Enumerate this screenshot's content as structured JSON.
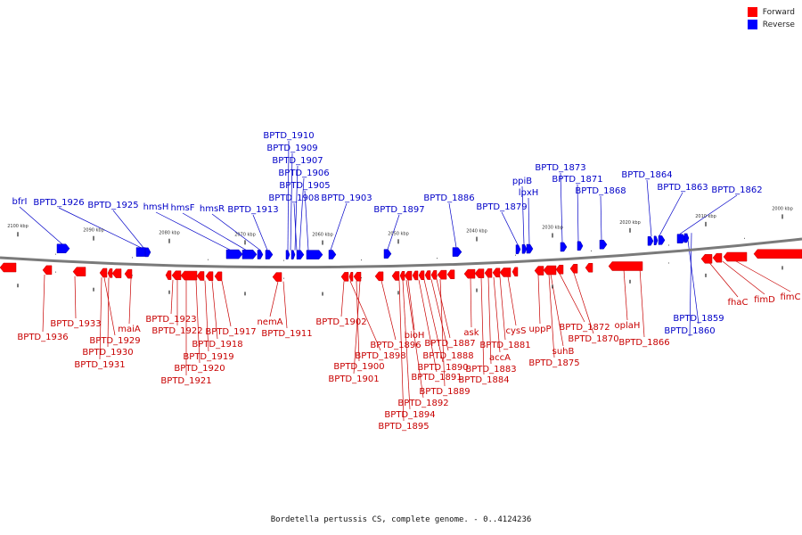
{
  "legend": {
    "forward": {
      "label": "Forward",
      "color": "#ff0000"
    },
    "reverse": {
      "label": "Reverse",
      "color": "#0000ff"
    }
  },
  "caption": "Bordetella pertussis CS, complete genome. - 0..4124236",
  "ticks": [
    "2100 kbp",
    "2090 kbp",
    "2080 kbp",
    "2070 kbp",
    "2060 kbp",
    "2050 kbp",
    "2040 kbp",
    "2030 kbp",
    "2020 kbp",
    "2010 kbp",
    "2000 kbp"
  ],
  "reverse_labels": [
    "bfrI",
    "BPTD_1926",
    "BPTD_1925",
    "hmsH",
    "hmsF",
    "hmsR",
    "BPTD_1913",
    "BPTD_1910",
    "BPTD_1909",
    "BPTD_1907",
    "BPTD_1906",
    "BPTD_1905",
    "BPTD_1908",
    "BPTD_1903",
    "BPTD_1897",
    "BPTD_1886",
    "BPTD_1879",
    "ppiB",
    "lpxH",
    "BPTD_1873",
    "BPTD_1871",
    "BPTD_1868",
    "BPTD_1864",
    "BPTD_1863",
    "BPTD_1862",
    "BPTD_1859",
    "BPTD_1860"
  ],
  "forward_labels": [
    "BPTD_1936",
    "BPTD_1933",
    "maiA",
    "BPTD_1929",
    "BPTD_1930",
    "BPTD_1931",
    "BPTD_1923",
    "BPTD_1922",
    "BPTD_1917",
    "BPTD_1918",
    "BPTD_1919",
    "BPTD_1920",
    "BPTD_1921",
    "nemA",
    "BPTD_1911",
    "BPTD_1902",
    "BPTD_1898",
    "BPTD_1900",
    "BPTD_1901",
    "BPTD_1896",
    "bioH",
    "BPTD_1887",
    "BPTD_1888",
    "BPTD_1890",
    "BPTD_1891",
    "BPTD_1889",
    "BPTD_1892",
    "BPTD_1894",
    "BPTD_1895",
    "ask",
    "cysS",
    "BPTD_1881",
    "accA",
    "BPTD_1883",
    "BPTD_1884",
    "uppP",
    "suhB",
    "BPTD_1875",
    "BPTD_1872",
    "BPTD_1870",
    "oplaH",
    "BPTD_1866",
    "fhaC",
    "fimD",
    "fimC"
  ]
}
